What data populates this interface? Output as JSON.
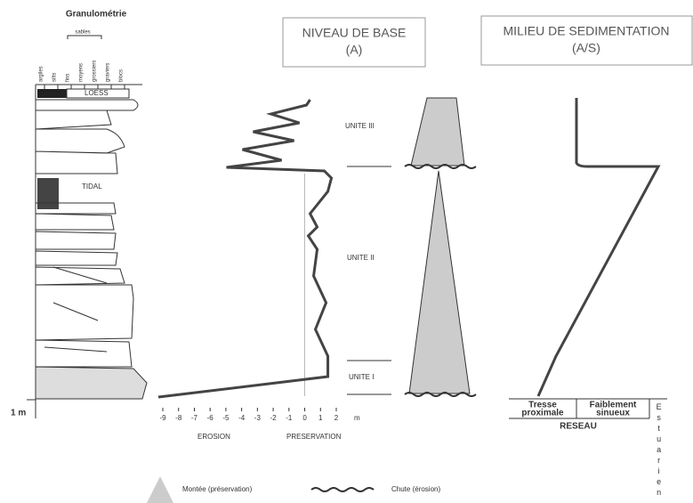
{
  "column": {
    "title": "Granulométrie",
    "grain_sizes": [
      "argiles",
      "silts",
      "fins",
      "moyens",
      "grossiers",
      "graviers",
      "blocs"
    ],
    "sand_group": "sables",
    "labels": [
      "LOESS",
      "TIDAL"
    ],
    "scale": "1 m"
  },
  "base_level": {
    "title": "NIVEAU DE BASE",
    "subtitle": "(A)",
    "ticks": [
      -9,
      -8,
      -7,
      -6,
      -5,
      -4,
      -3,
      -2,
      -1,
      0,
      1,
      2
    ],
    "unit": "m",
    "left_label": "EROSION",
    "right_label": "PRESERVATION"
  },
  "units": [
    "UNITE III",
    "UNITE II",
    "UNITE I"
  ],
  "sedimentation": {
    "title": "MILIEU DE SEDIMENTATION",
    "subtitle": "(A/S)",
    "network": {
      "cells": [
        [
          "Tresse",
          "proximale"
        ],
        [
          "Faiblement",
          "sinueux"
        ]
      ],
      "vertical": "Estuarien",
      "label": "RESEAU"
    }
  },
  "legend": {
    "rise": "Montée (préservation)",
    "fall": "Chute (érosion)"
  }
}
